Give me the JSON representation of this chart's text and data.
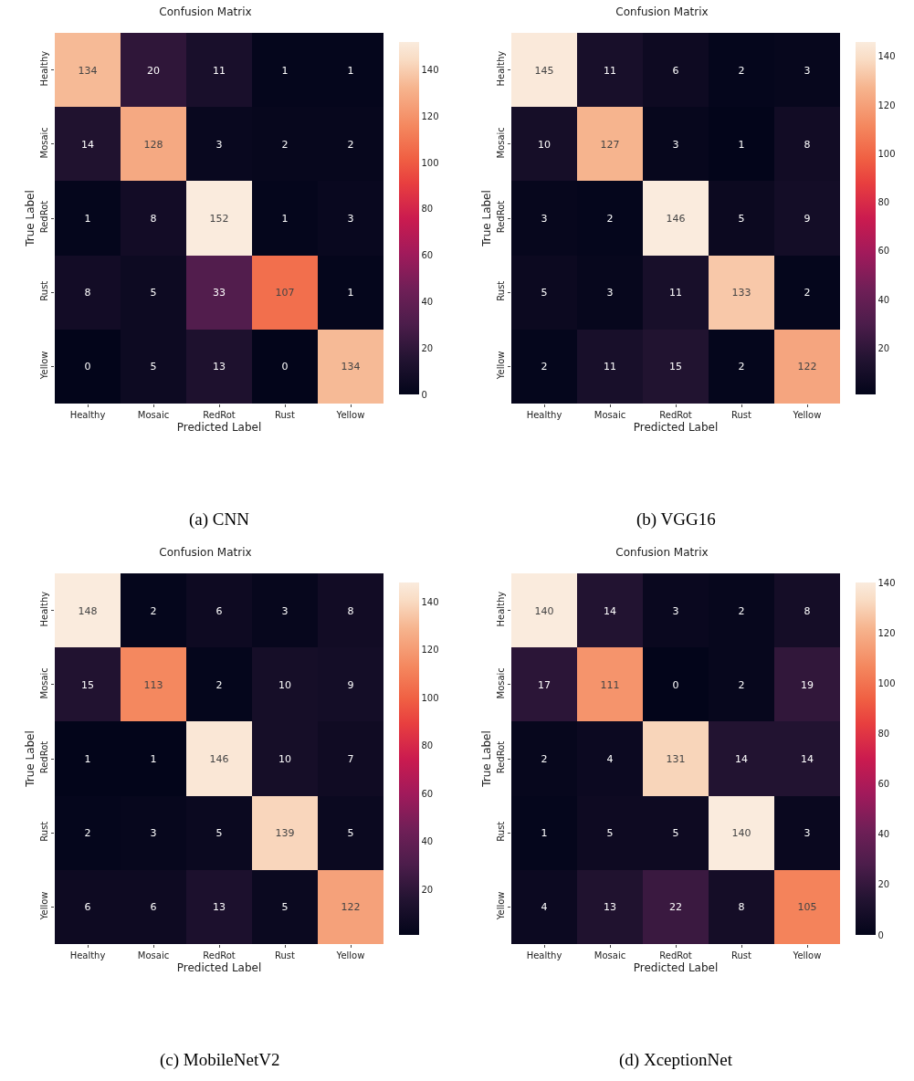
{
  "chart_data": [
    {
      "type": "heatmap",
      "title": "Confusion Matrix",
      "xlabel": "Predicted Label",
      "ylabel": "True Label",
      "annotations": [
        "(a) CNN"
      ],
      "categories": [
        "Healthy",
        "Mosaic",
        "RedRot",
        "Rust",
        "Yellow"
      ],
      "y_categories": [
        "Healthy",
        "Mosaic",
        "RedRot",
        "Rust",
        "Yellow"
      ],
      "data_labels": true,
      "cells": [
        [
          134,
          20,
          11,
          1,
          1
        ],
        [
          14,
          128,
          3,
          2,
          2
        ],
        [
          1,
          8,
          152,
          1,
          3
        ],
        [
          8,
          5,
          33,
          107,
          1
        ],
        [
          0,
          5,
          13,
          0,
          134
        ]
      ],
      "clim": [
        0,
        152
      ],
      "cticks": [
        0,
        20,
        40,
        60,
        80,
        100,
        120,
        140
      ]
    },
    {
      "type": "heatmap",
      "title": "Confusion Matrix",
      "xlabel": "Predicted Label",
      "ylabel": "True Label",
      "annotations": [
        "(b) VGG16"
      ],
      "categories": [
        "Healthy",
        "Mosaic",
        "RedRot",
        "Rust",
        "Yellow"
      ],
      "y_categories": [
        "Healthy",
        "Mosaic",
        "RedRot",
        "Rust",
        "Yellow"
      ],
      "data_labels": true,
      "cells": [
        [
          145,
          11,
          6,
          2,
          3
        ],
        [
          10,
          127,
          3,
          1,
          8
        ],
        [
          3,
          2,
          146,
          5,
          9
        ],
        [
          5,
          3,
          11,
          133,
          2
        ],
        [
          2,
          11,
          15,
          2,
          122
        ]
      ],
      "clim": [
        1,
        146
      ],
      "cticks": [
        20,
        40,
        60,
        80,
        100,
        120,
        140
      ]
    },
    {
      "type": "heatmap",
      "title": "Confusion Matrix",
      "xlabel": "Predicted Label",
      "ylabel": "True Label",
      "annotations": [
        "(c) MobileNetV2"
      ],
      "categories": [
        "Healthy",
        "Mosaic",
        "RedRot",
        "Rust",
        "Yellow"
      ],
      "y_categories": [
        "Healthy",
        "Mosaic",
        "RedRot",
        "Rust",
        "Yellow"
      ],
      "data_labels": true,
      "cells": [
        [
          148,
          2,
          6,
          3,
          8
        ],
        [
          15,
          113,
          2,
          10,
          9
        ],
        [
          1,
          1,
          146,
          10,
          7
        ],
        [
          2,
          3,
          5,
          139,
          5
        ],
        [
          6,
          6,
          13,
          5,
          122
        ]
      ],
      "clim": [
        1,
        148
      ],
      "cticks": [
        20,
        40,
        60,
        80,
        100,
        120,
        140
      ]
    },
    {
      "type": "heatmap",
      "title": "Confusion Matrix",
      "xlabel": "Predicted Label",
      "ylabel": "True Label",
      "annotations": [
        "(d) XceptionNet"
      ],
      "categories": [
        "Healthy",
        "Mosaic",
        "RedRot",
        "Rust",
        "Yellow"
      ],
      "y_categories": [
        "Healthy",
        "Mosaic",
        "RedRot",
        "Rust",
        "Yellow"
      ],
      "data_labels": true,
      "cells": [
        [
          140,
          14,
          3,
          2,
          8
        ],
        [
          17,
          111,
          0,
          2,
          19
        ],
        [
          2,
          4,
          131,
          14,
          14
        ],
        [
          1,
          5,
          5,
          140,
          3
        ],
        [
          4,
          13,
          22,
          8,
          105
        ]
      ],
      "clim": [
        0,
        140
      ],
      "cticks": [
        0,
        20,
        40,
        60,
        80,
        100,
        120,
        140
      ]
    }
  ]
}
